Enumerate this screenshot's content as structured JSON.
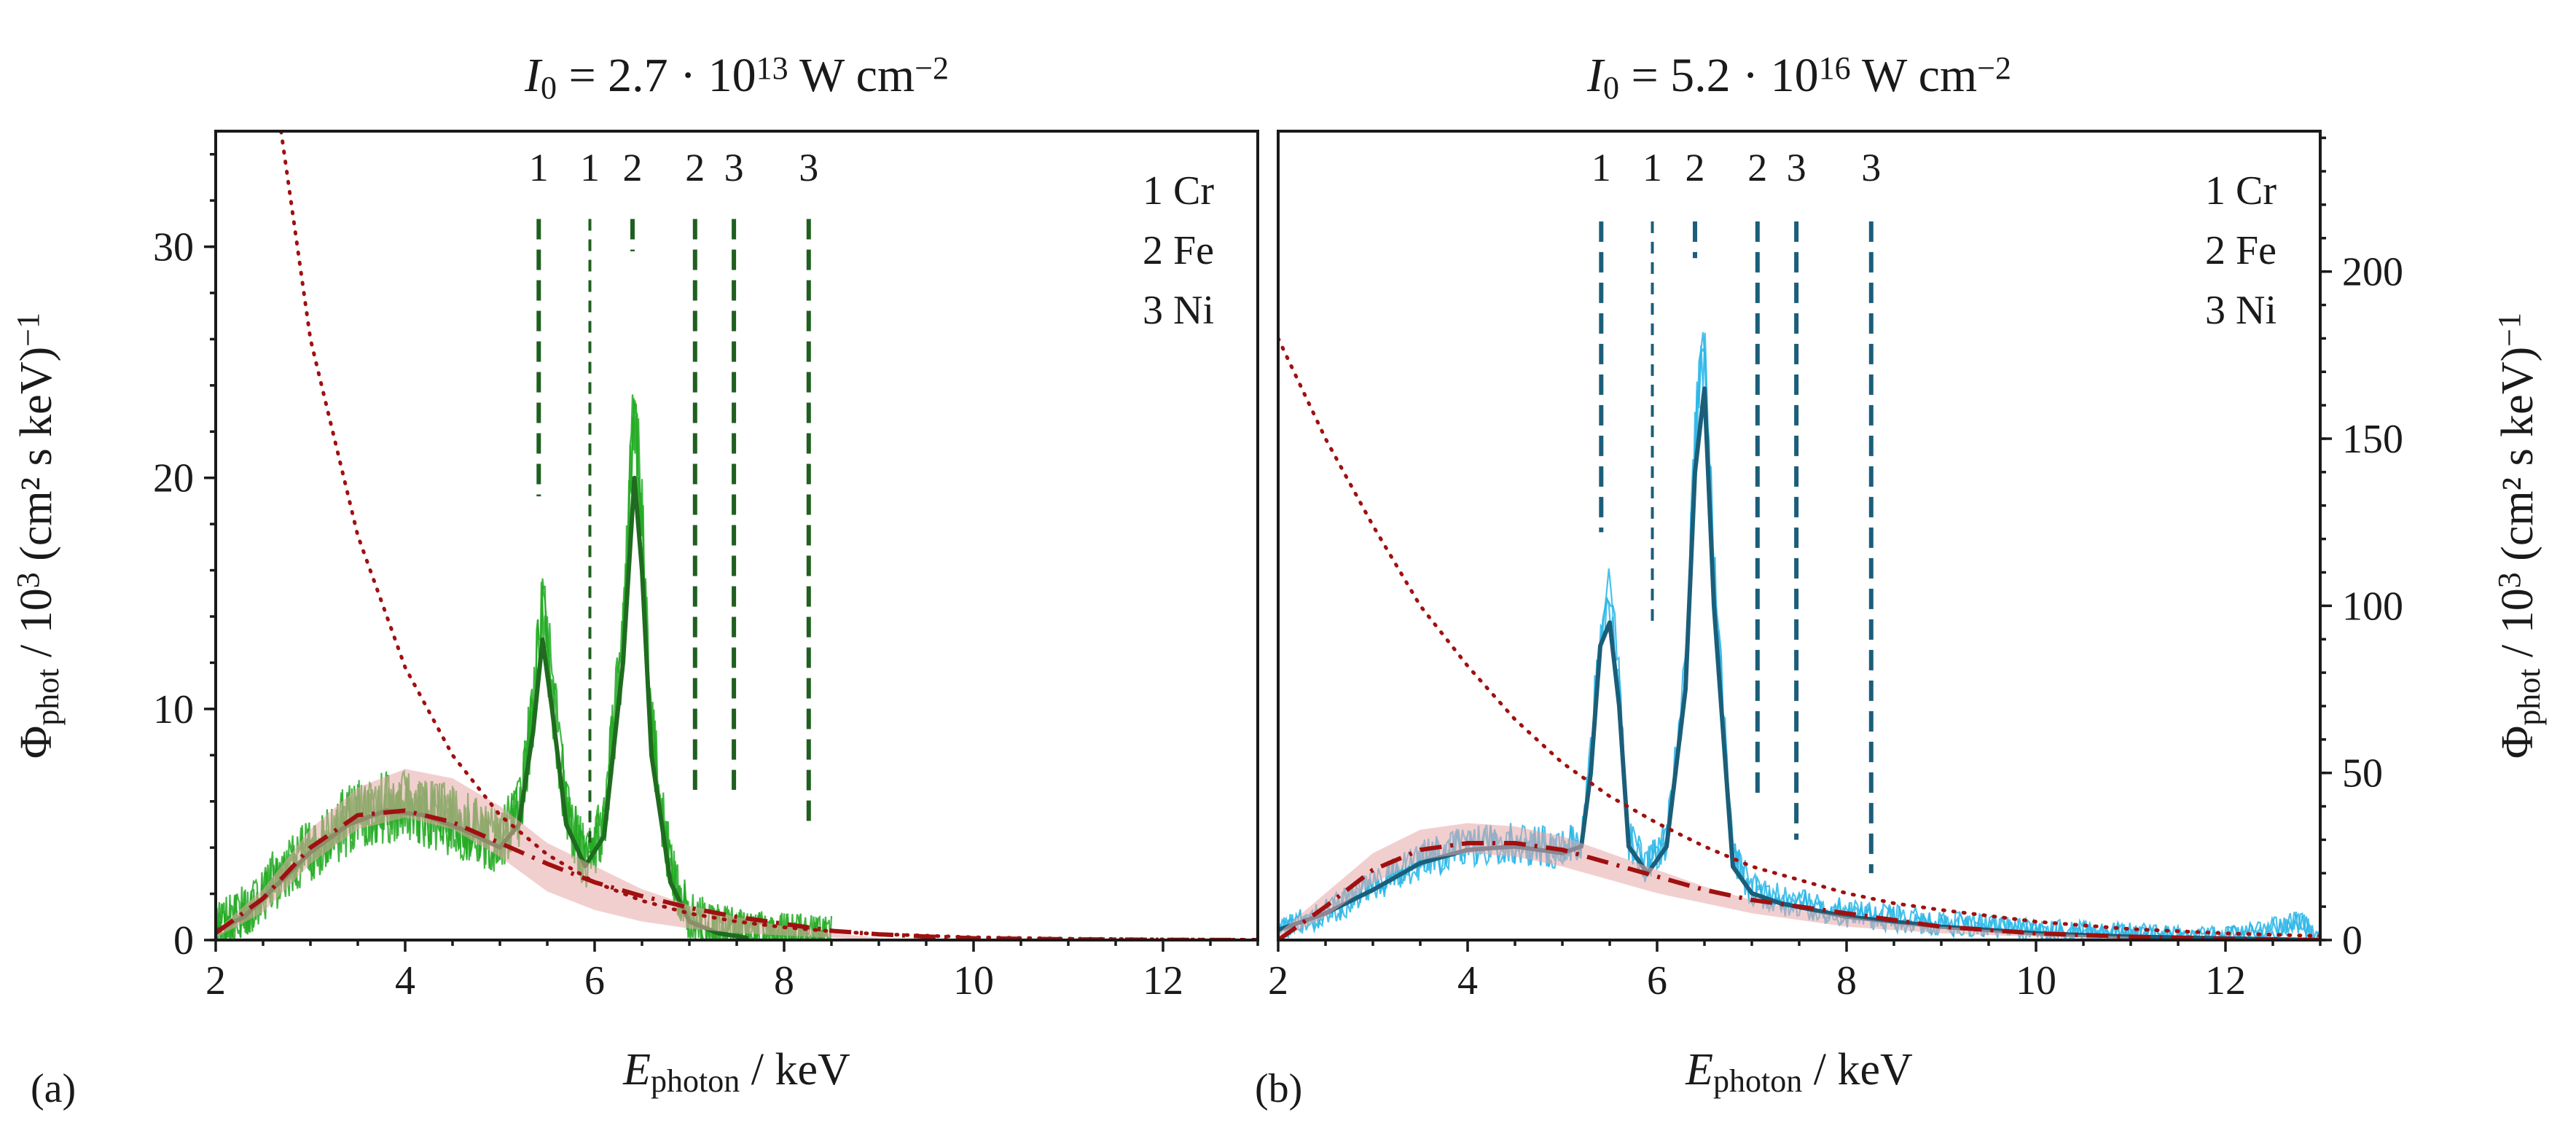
{
  "chart_data": [
    {
      "type": "line",
      "panel_label": "(a)",
      "title": "I0 = 2.7 · 10^13 W cm^-2",
      "title_parts": {
        "symbol": "I",
        "sub": "0",
        "prefix": " = 2.7 · 10",
        "exp": "13",
        "unit": " W cm",
        "unit_exp": "−2"
      },
      "xlabel": {
        "symbol": "E",
        "sub": "photon",
        "unit": " / keV"
      },
      "ylabel": {
        "symbol": "Φ",
        "sub": "phot",
        "mid": " / 10",
        "exp": "3",
        "unit": " (cm² s keV)",
        "unit_exp": "−1"
      },
      "y_axis_side": "left",
      "xlim": [
        2,
        13
      ],
      "ylim": [
        0,
        35
      ],
      "xticks": [
        2,
        4,
        6,
        8,
        10,
        12
      ],
      "yticks": [
        0,
        10,
        20,
        30
      ],
      "tick_labels_x": [
        "2",
        "4",
        "6",
        "8",
        "10",
        "12"
      ],
      "tick_labels_y": [
        "0",
        "10",
        "20",
        "30"
      ],
      "colors": {
        "measured": "#22aa22",
        "mean": "#1f6b1f",
        "markers": "#1f5f1f",
        "fit": "#a01010",
        "band": "#e8a8a8"
      },
      "legend": [
        "1 Cr",
        "2 Fe",
        "3 Ni"
      ],
      "legend_position": "top-right",
      "line_markers": [
        {
          "label": "1",
          "x": 5.41,
          "y_top": 31.2,
          "y_bottom": 19.2,
          "dash": "long"
        },
        {
          "label": "1",
          "x": 5.95,
          "y_top": 31.2,
          "y_bottom": 3.8,
          "dash": "short"
        },
        {
          "label": "2",
          "x": 6.4,
          "y_top": 31.2,
          "y_bottom": 29.8,
          "dash": "long"
        },
        {
          "label": "2",
          "x": 7.06,
          "y_top": 31.2,
          "y_bottom": 6.5,
          "dash": "long"
        },
        {
          "label": "3",
          "x": 7.47,
          "y_top": 31.2,
          "y_bottom": 6.5,
          "dash": "long"
        },
        {
          "label": "3",
          "x": 8.26,
          "y_top": 31.2,
          "y_bottom": 5.0,
          "dash": "long"
        }
      ],
      "series": [
        {
          "name": "measured spectrum (noisy)",
          "style": "noisy",
          "noise": 1.4,
          "x": [
            2.0,
            2.3,
            2.6,
            3.0,
            3.4,
            3.8,
            4.2,
            4.6,
            5.0,
            5.2,
            5.35,
            5.45,
            5.55,
            5.7,
            5.9,
            6.1,
            6.3,
            6.42,
            6.5,
            6.6,
            6.8,
            7.0,
            7.3,
            7.6,
            8.0,
            8.5
          ],
          "values": [
            0.5,
            1.2,
            2.5,
            4.0,
            5.2,
            5.8,
            5.6,
            5.0,
            4.2,
            5.5,
            10.0,
            14.5,
            11.0,
            5.5,
            3.5,
            5.0,
            13.0,
            23.0,
            18.0,
            9.0,
            3.0,
            1.0,
            0.5,
            0.3,
            0.2,
            0.1
          ]
        },
        {
          "name": "measured spectrum (mean)",
          "style": "solid",
          "x": [
            2.0,
            2.3,
            2.6,
            3.0,
            3.4,
            3.8,
            4.2,
            4.6,
            5.0,
            5.2,
            5.35,
            5.45,
            5.55,
            5.7,
            5.9,
            6.1,
            6.3,
            6.42,
            6.5,
            6.6,
            6.8,
            7.0,
            7.3,
            7.6
          ],
          "values": [
            0.4,
            1.0,
            2.2,
            3.8,
            5.0,
            5.6,
            5.4,
            4.8,
            4.0,
            5.0,
            9.0,
            13.0,
            10.0,
            5.0,
            3.2,
            4.5,
            12.0,
            20.0,
            16.0,
            8.0,
            2.5,
            0.8,
            0.3,
            0.1
          ]
        },
        {
          "name": "fit uncertainty band",
          "style": "band",
          "x": [
            2.0,
            2.5,
            3.0,
            3.5,
            4.0,
            4.5,
            5.0,
            5.5,
            6.0,
            6.5,
            7.0,
            7.5,
            8.0,
            8.5,
            9.0
          ],
          "lower": [
            0.1,
            1.2,
            3.3,
            4.8,
            5.3,
            4.8,
            3.6,
            2.1,
            1.3,
            0.8,
            0.5,
            0.3,
            0.2,
            0.1,
            0.0
          ],
          "upper": [
            0.4,
            2.2,
            4.8,
            6.6,
            7.4,
            7.0,
            5.8,
            4.2,
            3.2,
            2.2,
            1.5,
            1.0,
            0.6,
            0.3,
            0.1
          ]
        },
        {
          "name": "fit (dash-dot)",
          "style": "dashdot",
          "x": [
            2.0,
            2.5,
            3.0,
            3.5,
            4.0,
            4.5,
            5.0,
            5.5,
            6.0,
            6.5,
            7.0,
            7.5,
            8.0,
            8.5,
            9.0,
            9.5,
            10.0,
            11.0,
            12.0,
            13.0
          ],
          "values": [
            0.3,
            1.8,
            4.0,
            5.4,
            5.6,
            5.1,
            4.2,
            3.3,
            2.5,
            1.9,
            1.4,
            1.0,
            0.7,
            0.4,
            0.25,
            0.15,
            0.08,
            0.03,
            0.01,
            0.0
          ]
        },
        {
          "name": "exponential slope (dotted)",
          "style": "dotted",
          "x": [
            2.69,
            3.0,
            3.5,
            4.0,
            4.5,
            5.0,
            5.5,
            6.0,
            6.5,
            7.0,
            7.5,
            8.0,
            8.5,
            9.0,
            10.0,
            11.0,
            12.0,
            13.0
          ],
          "values": [
            35.0,
            26.0,
            17.5,
            11.8,
            8.0,
            5.4,
            3.7,
            2.5,
            1.7,
            1.15,
            0.8,
            0.55,
            0.38,
            0.26,
            0.12,
            0.06,
            0.03,
            0.01
          ]
        }
      ]
    },
    {
      "type": "line",
      "panel_label": "(b)",
      "title": "I0 = 5.2 · 10^16 W cm^-2",
      "title_parts": {
        "symbol": "I",
        "sub": "0",
        "prefix": " = 5.2 · 10",
        "exp": "16",
        "unit": " W cm",
        "unit_exp": "−2"
      },
      "xlabel": {
        "symbol": "E",
        "sub": "photon",
        "unit": " / keV"
      },
      "ylabel": {
        "symbol": "Φ",
        "sub": "phot",
        "mid": " / 10",
        "exp": "3",
        "unit": " (cm² s keV)",
        "unit_exp": "−1"
      },
      "y_axis_side": "right",
      "xlim": [
        2,
        13
      ],
      "ylim": [
        0,
        242
      ],
      "xticks": [
        2,
        4,
        6,
        8,
        10,
        12
      ],
      "yticks": [
        0,
        50,
        100,
        150,
        200
      ],
      "tick_labels_x": [
        "2",
        "4",
        "6",
        "8",
        "10",
        "12"
      ],
      "tick_labels_y": [
        "0",
        "50",
        "100",
        "150",
        "200"
      ],
      "colors": {
        "measured": "#29b6e8",
        "mean": "#1b5e7a",
        "markers": "#1b5e7a",
        "fit": "#a01010",
        "band": "#e8a8a8"
      },
      "legend": [
        "1 Cr",
        "2 Fe",
        "3 Ni"
      ],
      "legend_position": "top-right",
      "line_markers": [
        {
          "label": "1",
          "x": 5.41,
          "y_top": 215,
          "y_bottom": 122,
          "dash": "long"
        },
        {
          "label": "1",
          "x": 5.95,
          "y_top": 215,
          "y_bottom": 95,
          "dash": "short"
        },
        {
          "label": "2",
          "x": 6.4,
          "y_top": 215,
          "y_bottom": 204,
          "dash": "long"
        },
        {
          "label": "2",
          "x": 7.06,
          "y_top": 215,
          "y_bottom": 44,
          "dash": "long"
        },
        {
          "label": "3",
          "x": 7.47,
          "y_top": 215,
          "y_bottom": 30,
          "dash": "long"
        },
        {
          "label": "3",
          "x": 8.26,
          "y_top": 215,
          "y_bottom": 20,
          "dash": "long"
        }
      ],
      "series": [
        {
          "name": "measured spectrum (noisy)",
          "style": "noisy",
          "noise": 3.5,
          "x": [
            2.0,
            2.5,
            3.0,
            3.5,
            4.0,
            4.5,
            5.0,
            5.2,
            5.3,
            5.4,
            5.5,
            5.6,
            5.7,
            5.9,
            6.1,
            6.3,
            6.4,
            6.5,
            6.6,
            6.8,
            7.0,
            7.3,
            8.0,
            9.0,
            10.0,
            11.0,
            12.0,
            12.8,
            13.0
          ],
          "values": [
            3,
            8,
            16,
            24,
            28,
            29,
            27,
            30,
            55,
            95,
            105,
            75,
            30,
            22,
            30,
            80,
            150,
            180,
            110,
            25,
            15,
            12,
            8,
            5,
            3,
            2,
            1,
            5,
            0
          ]
        },
        {
          "name": "measured spectrum (mean)",
          "style": "solid",
          "x": [
            2.0,
            2.5,
            3.0,
            3.5,
            4.0,
            4.5,
            5.0,
            5.2,
            5.3,
            5.4,
            5.5,
            5.6,
            5.7,
            5.9,
            6.1,
            6.3,
            6.4,
            6.5,
            6.6,
            6.8,
            7.0,
            7.3,
            8.0,
            9.0,
            10.0,
            11.0,
            12.0,
            13.0
          ],
          "values": [
            3,
            8,
            15,
            23,
            27,
            28,
            26,
            28,
            50,
            88,
            95,
            70,
            28,
            20,
            28,
            75,
            140,
            165,
            100,
            22,
            14,
            11,
            7,
            4,
            2,
            1,
            0.5,
            0
          ]
        },
        {
          "name": "fit uncertainty band",
          "style": "band",
          "x": [
            2.0,
            2.5,
            3.0,
            3.5,
            4.0,
            4.5,
            5.0,
            5.5,
            6.0,
            6.5,
            7.0,
            7.5,
            8.0,
            8.5,
            9.0,
            10.0,
            11.0
          ],
          "lower": [
            0,
            7,
            17,
            24,
            26,
            25,
            22,
            18,
            14,
            11,
            8,
            6,
            4,
            3,
            2,
            1,
            0
          ],
          "upper": [
            2,
            14,
            26,
            33,
            35,
            34,
            31,
            26,
            21,
            16,
            12,
            9,
            7,
            5,
            4,
            2,
            1
          ]
        },
        {
          "name": "fit (dash-dot)",
          "style": "dashdot",
          "x": [
            2.0,
            2.5,
            3.0,
            3.5,
            4.0,
            4.5,
            5.0,
            5.5,
            6.0,
            6.5,
            7.0,
            7.5,
            8.0,
            8.5,
            9.0,
            9.5,
            10.0,
            11.0,
            12.0,
            13.0
          ],
          "values": [
            0,
            10,
            21,
            27,
            29,
            29,
            27,
            23,
            19,
            15,
            12,
            10,
            8,
            6,
            4,
            3,
            2,
            1,
            0.3,
            0
          ]
        },
        {
          "name": "exponential slope (dotted)",
          "style": "dotted",
          "x": [
            2.0,
            2.5,
            3.0,
            3.5,
            4.0,
            4.5,
            5.0,
            5.5,
            6.0,
            6.5,
            7.0,
            7.5,
            8.0,
            8.5,
            9.0,
            10.0,
            11.0,
            12.0,
            13.0
          ],
          "values": [
            180,
            150,
            124,
            100,
            82,
            66,
            53,
            43,
            35,
            28,
            22,
            18,
            14,
            11,
            9,
            5.5,
            3.3,
            2.0,
            1.2
          ]
        }
      ]
    }
  ]
}
